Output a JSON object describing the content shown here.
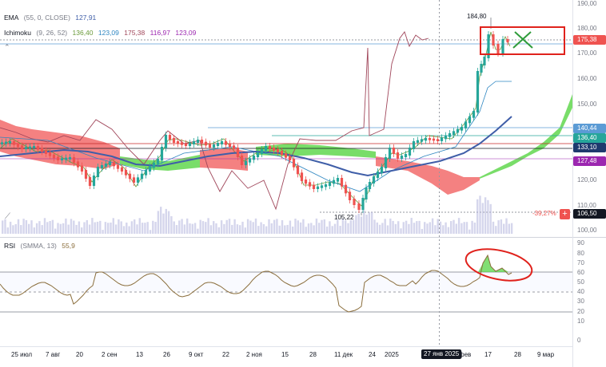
{
  "legend": {
    "ema_name": "EMA",
    "ema_params": "(55, 0, CLOSE)",
    "ema_value": "127,91",
    "ichi_name": "Ichimoku",
    "ichi_params": "(9, 26, 52)",
    "ichi_v1": "136,40",
    "ichi_v2": "123,09",
    "ichi_v3": "175,38",
    "ichi_v4": "116,97",
    "ichi_v5": "123,09",
    "rsi_name": "RSI",
    "rsi_params": "(SMMA, 13)",
    "rsi_value": "55,9"
  },
  "price_axis": [
    "190,00",
    "180,00",
    "170,00",
    "160,00",
    "150,00",
    "120,00",
    "110,00",
    "100,00"
  ],
  "price_tags": [
    {
      "text": "175,38",
      "color": "#ef5350"
    },
    {
      "text": "140,44",
      "color": "#5b9bd5"
    },
    {
      "text": "136,40",
      "color": "#26a69a"
    },
    {
      "text": "133,10",
      "color": "#1e3a6e"
    },
    {
      "text": "127,48",
      "color": "#9c27b0"
    },
    {
      "text": "106,50",
      "color": "#131722"
    }
  ],
  "high_label": "184,80",
  "low_label": "105,22",
  "pct_label": "-39,27%",
  "rsi_axis": [
    "90",
    "80",
    "70",
    "60",
    "50",
    "40",
    "30",
    "20",
    "10",
    "0"
  ],
  "time_axis": [
    "25 июл",
    "7 авг",
    "20",
    "2 сен",
    "13",
    "26",
    "9 окт",
    "22",
    "2 ноя",
    "15",
    "28",
    "11 дек",
    "24",
    "2025",
    "27 янв 2025",
    "фев",
    "17",
    "28",
    "9 мар"
  ],
  "colors": {
    "up": "#26a69a",
    "down": "#ef5350",
    "ema": "#3f5ea8",
    "annotation": "#e0221c"
  },
  "annotations": {
    "x_mark_icon": "cross-mark",
    "rsi_ellipse": "highlight-ellipse",
    "box": "highlight-box"
  }
}
